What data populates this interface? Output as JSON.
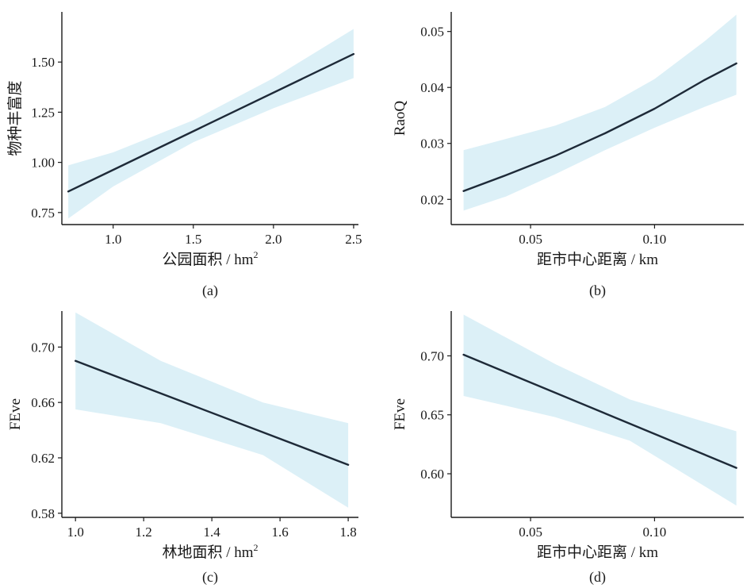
{
  "colors": {
    "band": "#dcf0f7",
    "line": "#1e2a38",
    "axis": "#1a1a1a"
  },
  "chart_data": [
    {
      "type": "line",
      "panel_label": "(a)",
      "xlabel": "公园面积 / hm",
      "xlabel_sup": "2",
      "ylabel": "物种丰富度",
      "xlim": [
        0.68,
        2.53
      ],
      "ylim": [
        0.69,
        1.75
      ],
      "xticks": [
        1.0,
        1.5,
        2.0,
        2.5
      ],
      "xtick_labels": [
        "1.0",
        "1.5",
        "2.0",
        "2.5"
      ],
      "yticks": [
        0.75,
        1.0,
        1.25,
        1.5
      ],
      "ytick_labels": [
        "0.75",
        "1.00",
        "1.25",
        "1.50"
      ],
      "fit": {
        "x": [
          0.72,
          2.5
        ],
        "y": [
          0.855,
          1.54
        ]
      },
      "ci_lower": {
        "x": [
          0.72,
          1.0,
          1.5,
          2.0,
          2.5
        ],
        "y": [
          0.72,
          0.88,
          1.1,
          1.27,
          1.42
        ]
      },
      "ci_upper": {
        "x": [
          0.72,
          1.0,
          1.5,
          2.0,
          2.5
        ],
        "y": [
          0.985,
          1.05,
          1.21,
          1.42,
          1.665
        ]
      }
    },
    {
      "type": "line",
      "panel_label": "(b)",
      "xlabel": "距市中心距离 / km",
      "ylabel": "RaoQ",
      "xlim": [
        0.018,
        0.136
      ],
      "ylim": [
        0.0155,
        0.0535
      ],
      "xticks": [
        0.05,
        0.1
      ],
      "xtick_labels": [
        "0.05",
        "0.10"
      ],
      "yticks": [
        0.02,
        0.03,
        0.04,
        0.05
      ],
      "ytick_labels": [
        "0.02",
        "0.03",
        "0.04",
        "0.05"
      ],
      "fit": {
        "x": [
          0.023,
          0.04,
          0.06,
          0.08,
          0.1,
          0.12,
          0.133
        ],
        "y": [
          0.0215,
          0.0243,
          0.0278,
          0.0318,
          0.0362,
          0.0413,
          0.0443
        ]
      },
      "ci_lower": {
        "x": [
          0.023,
          0.04,
          0.06,
          0.08,
          0.1,
          0.12,
          0.133
        ],
        "y": [
          0.018,
          0.0205,
          0.0245,
          0.0288,
          0.0328,
          0.0365,
          0.0387
        ]
      },
      "ci_upper": {
        "x": [
          0.023,
          0.04,
          0.06,
          0.08,
          0.1,
          0.12,
          0.133
        ],
        "y": [
          0.0288,
          0.0308,
          0.0332,
          0.0365,
          0.0415,
          0.0482,
          0.053
        ]
      }
    },
    {
      "type": "line",
      "panel_label": "(c)",
      "xlabel": "林地面积 / hm",
      "xlabel_sup": "2",
      "ylabel": "FEve",
      "xlim": [
        0.96,
        1.83
      ],
      "ylim": [
        0.577,
        0.726
      ],
      "xticks": [
        1.0,
        1.2,
        1.4,
        1.6,
        1.8
      ],
      "xtick_labels": [
        "1.0",
        "1.2",
        "1.4",
        "1.6",
        "1.8"
      ],
      "yticks": [
        0.58,
        0.62,
        0.66,
        0.7
      ],
      "ytick_labels": [
        "0.58",
        "0.62",
        "0.66",
        "0.70"
      ],
      "fit": {
        "x": [
          1.0,
          1.8
        ],
        "y": [
          0.69,
          0.615
        ]
      },
      "ci_lower": {
        "x": [
          1.0,
          1.25,
          1.55,
          1.8
        ],
        "y": [
          0.655,
          0.645,
          0.622,
          0.584
        ]
      },
      "ci_upper": {
        "x": [
          1.0,
          1.25,
          1.55,
          1.8
        ],
        "y": [
          0.725,
          0.69,
          0.66,
          0.645
        ]
      }
    },
    {
      "type": "line",
      "panel_label": "(d)",
      "xlabel": "距市中心距离 / km",
      "ylabel": "FEve",
      "xlim": [
        0.018,
        0.136
      ],
      "ylim": [
        0.563,
        0.738
      ],
      "xticks": [
        0.05,
        0.1
      ],
      "xtick_labels": [
        "0.05",
        "0.10"
      ],
      "yticks": [
        0.6,
        0.65,
        0.7
      ],
      "ytick_labels": [
        "0.60",
        "0.65",
        "0.70"
      ],
      "fit": {
        "x": [
          0.023,
          0.133
        ],
        "y": [
          0.701,
          0.605
        ]
      },
      "ci_lower": {
        "x": [
          0.023,
          0.06,
          0.09,
          0.133
        ],
        "y": [
          0.666,
          0.648,
          0.628,
          0.573
        ]
      },
      "ci_upper": {
        "x": [
          0.023,
          0.06,
          0.09,
          0.133
        ],
        "y": [
          0.735,
          0.693,
          0.663,
          0.636
        ]
      }
    }
  ]
}
